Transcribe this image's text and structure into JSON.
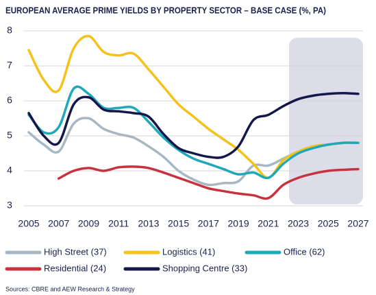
{
  "chart_data": {
    "type": "line",
    "title": "EUROPEAN AVERAGE PRIME YIELDS BY PROPERTY SECTOR – BASE CASE (%, PA)",
    "source": "Sources: CBRE and AEW Research & Strategy",
    "x": [
      2005,
      2006,
      2007,
      2008,
      2009,
      2010,
      2011,
      2012,
      2013,
      2014,
      2015,
      2016,
      2017,
      2018,
      2019,
      2020,
      2021,
      2022,
      2023,
      2024,
      2025,
      2026,
      2027
    ],
    "xlim": [
      2005,
      2027
    ],
    "xticks": [
      2005,
      2007,
      2009,
      2011,
      2013,
      2015,
      2017,
      2019,
      2021,
      2023,
      2025,
      2027
    ],
    "ylim": [
      3,
      8
    ],
    "yticks": [
      3,
      4,
      5,
      6,
      7,
      8
    ],
    "grid": true,
    "series": [
      {
        "name": "High Street (37)",
        "color": "#a7b8c4",
        "values": [
          5.1,
          4.75,
          4.55,
          5.35,
          5.5,
          5.2,
          5.05,
          4.95,
          4.7,
          4.4,
          4.0,
          3.75,
          3.6,
          3.65,
          3.7,
          4.15,
          4.15,
          4.35,
          4.55,
          4.7,
          4.75,
          4.8,
          4.8
        ]
      },
      {
        "name": "Logistics (41)",
        "color": "#f5c21b",
        "values": [
          7.45,
          6.6,
          6.3,
          7.5,
          7.85,
          7.4,
          7.3,
          7.35,
          6.9,
          6.4,
          5.9,
          5.55,
          5.2,
          4.9,
          4.6,
          4.2,
          3.8,
          4.3,
          4.55,
          4.7,
          4.75,
          4.8,
          4.8
        ]
      },
      {
        "name": "Office (62)",
        "color": "#1fa9b8",
        "values": [
          5.6,
          5.1,
          5.25,
          6.35,
          6.2,
          5.8,
          5.8,
          5.8,
          5.4,
          4.95,
          4.6,
          4.35,
          4.2,
          4.05,
          3.9,
          3.95,
          3.8,
          4.2,
          4.5,
          4.65,
          4.75,
          4.8,
          4.8
        ]
      },
      {
        "name": "Residential (24)",
        "color": "#c8323f",
        "values": [
          null,
          null,
          3.78,
          4.0,
          4.08,
          4.0,
          4.1,
          4.12,
          4.08,
          3.95,
          3.8,
          3.65,
          3.5,
          3.42,
          3.35,
          3.3,
          3.22,
          3.6,
          3.8,
          3.92,
          4.0,
          4.03,
          4.05
        ]
      },
      {
        "name": "Shopping Centre (33)",
        "color": "#14174a",
        "values": [
          5.65,
          5.0,
          4.8,
          5.9,
          6.1,
          5.75,
          5.7,
          5.65,
          5.55,
          5.05,
          4.65,
          4.5,
          4.4,
          4.4,
          4.7,
          5.45,
          5.6,
          5.85,
          6.05,
          6.15,
          6.2,
          6.22,
          6.2
        ]
      }
    ]
  }
}
